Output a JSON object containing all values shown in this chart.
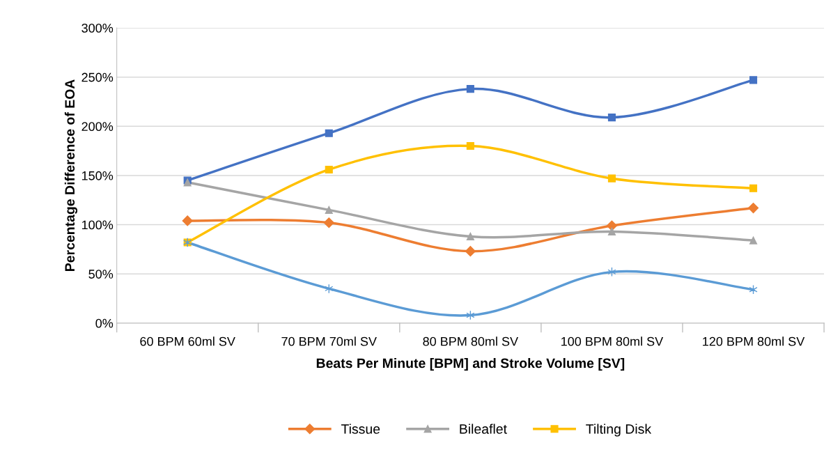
{
  "chart_data": {
    "type": "line",
    "xlabel": "Beats Per Minute [BPM] and Stroke Volume [SV]",
    "ylabel": "Percentage Difference of EOA",
    "categories": [
      "60 BPM 60ml SV",
      "70 BPM 70ml SV",
      "80 BPM 80ml SV",
      "100 BPM 80ml SV",
      "120 BPM 80ml SV"
    ],
    "ylim": [
      0,
      300
    ],
    "yticks": [
      {
        "value": 0,
        "label": "0%"
      },
      {
        "value": 50,
        "label": "50%"
      },
      {
        "value": 100,
        "label": "100%"
      },
      {
        "value": 150,
        "label": "150%"
      },
      {
        "value": 200,
        "label": "200%"
      },
      {
        "value": 250,
        "label": "250%"
      },
      {
        "value": 300,
        "label": "300%"
      }
    ],
    "grid": "y",
    "legend": "bottom",
    "line_style": "solid",
    "series": [
      {
        "color": "#4472c4",
        "marker": "square",
        "values": [
          145,
          193,
          238,
          209,
          247
        ]
      },
      {
        "name": "Tissue",
        "color": "#ed7d31",
        "marker": "diamond",
        "values": [
          104,
          102,
          73,
          99,
          117
        ]
      },
      {
        "name": "Bileaflet",
        "color": "#a5a5a5",
        "marker": "triangle",
        "values": [
          143,
          115,
          88,
          93,
          84
        ]
      },
      {
        "name": "Tilting Disk",
        "color": "#ffc000",
        "marker": "square",
        "values": [
          82,
          156,
          180,
          147,
          137
        ]
      },
      {
        "color": "#5b9bd5",
        "marker": "cross",
        "values": [
          82,
          35,
          8,
          52,
          34
        ]
      }
    ]
  }
}
